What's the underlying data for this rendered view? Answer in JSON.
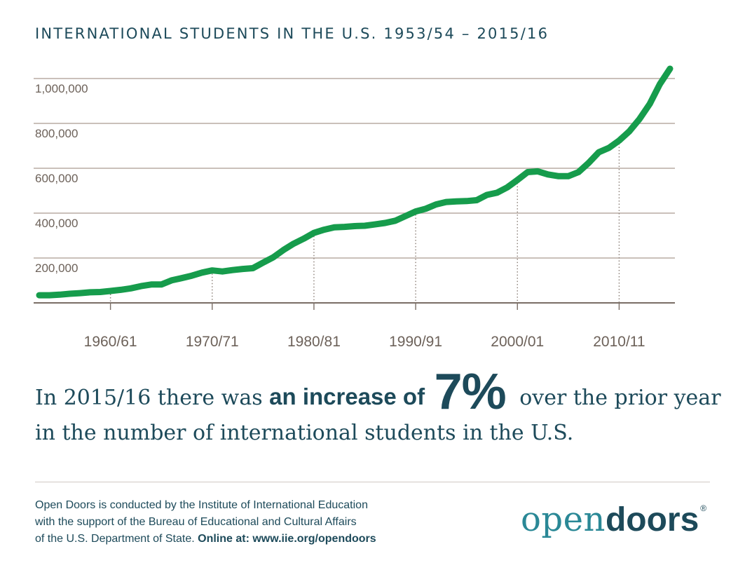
{
  "chart_data": {
    "type": "line",
    "title": "INTERNATIONAL STUDENTS IN THE U.S. 1953/54 – 2015/16",
    "xlabel": "",
    "ylabel": "",
    "ylim": [
      0,
      1050000
    ],
    "yticks": [
      200000,
      400000,
      600000,
      800000,
      1000000
    ],
    "ytick_labels": [
      "200,000",
      "400,000",
      "600,000",
      "800,000",
      "1,000,000"
    ],
    "xtick_labels": [
      "1960/61",
      "1970/71",
      "1980/81",
      "1990/91",
      "2000/01",
      "2010/11"
    ],
    "xtick_index": [
      7,
      17,
      27,
      37,
      47,
      57
    ],
    "grid": true,
    "series": [
      {
        "name": "International students",
        "color": "#169c4c",
        "x": [
          "1953/54",
          "1954/55",
          "1955/56",
          "1956/57",
          "1957/58",
          "1958/59",
          "1959/60",
          "1960/61",
          "1961/62",
          "1962/63",
          "1963/64",
          "1964/65",
          "1965/66",
          "1966/67",
          "1967/68",
          "1968/69",
          "1969/70",
          "1970/71",
          "1971/72",
          "1972/73",
          "1973/74",
          "1974/75",
          "1975/76",
          "1976/77",
          "1977/78",
          "1978/79",
          "1979/80",
          "1980/81",
          "1981/82",
          "1982/83",
          "1983/84",
          "1984/85",
          "1985/86",
          "1986/87",
          "1987/88",
          "1988/89",
          "1989/90",
          "1990/91",
          "1991/92",
          "1992/93",
          "1993/94",
          "1994/95",
          "1995/96",
          "1996/97",
          "1997/98",
          "1998/99",
          "1999/00",
          "2000/01",
          "2001/02",
          "2002/03",
          "2003/04",
          "2004/05",
          "2005/06",
          "2006/07",
          "2007/08",
          "2008/09",
          "2009/10",
          "2010/11",
          "2011/12",
          "2012/13",
          "2013/14",
          "2014/15",
          "2015/16"
        ],
        "values": [
          34000,
          34200,
          36500,
          40700,
          43400,
          47200,
          48500,
          53100,
          58100,
          64700,
          74800,
          82000,
          82000,
          100300,
          110300,
          121400,
          134900,
          144700,
          140100,
          146100,
          151100,
          154600,
          179300,
          203100,
          235500,
          263900,
          286300,
          311900,
          326300,
          336900,
          338900,
          342100,
          343800,
          349600,
          356200,
          366400,
          386900,
          407500,
          419600,
          438600,
          449700,
          452600,
          453800,
          457900,
          481300,
          490900,
          514700,
          547900,
          582900,
          586300,
          572500,
          565000,
          564800,
          582900,
          623800,
          671600,
          690900,
          723300,
          764500,
          819600,
          886100,
          974900,
          1043800
        ]
      }
    ]
  },
  "headline": {
    "part1": "In 2015/16 there was ",
    "strong": "an increase of",
    "big": "7%",
    "part2": " over the prior year",
    "line2": "in the number of international students in the U.S."
  },
  "footer": {
    "line1": "Open Doors is conducted by the Institute of International Education",
    "line2": "with the support of the Bureau of Educational and Cultural Affairs",
    "line3a": "of the U.S. Department of State. ",
    "line3b": "Online at: www.iie.org/opendoors"
  },
  "logo": {
    "part1": "open",
    "part2": "doors",
    "mark": "®"
  },
  "colors": {
    "line": "#169c4c",
    "text_dark": "#1d4a5a",
    "axis_text": "#6d625a",
    "grid": "#b8aca4"
  }
}
